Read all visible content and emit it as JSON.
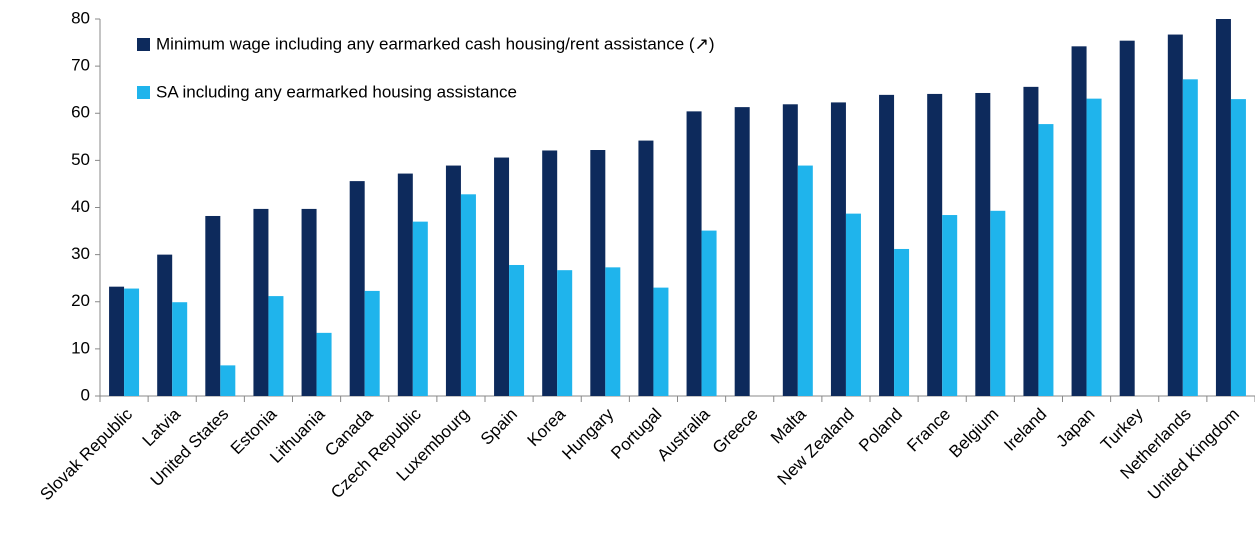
{
  "chart_data": {
    "type": "bar",
    "categories": [
      "Slovak Republic",
      "Latvia",
      "United States",
      "Estonia",
      "Lithuania",
      "Canada",
      "Czech Republic",
      "Luxembourg",
      "Spain",
      "Korea",
      "Hungary",
      "Portugal",
      "Australia",
      "Greece",
      "Malta",
      "New Zealand",
      "Poland",
      "France",
      "Belgium",
      "Ireland",
      "Japan",
      "Turkey",
      "Netherlands",
      "United Kingdom"
    ],
    "series": [
      {
        "name": "Minimum wage including any earmarked cash housing/rent assistance (↗)",
        "color": "#0d2a5c",
        "values": [
          23.2,
          30.0,
          38.2,
          39.7,
          39.7,
          45.6,
          47.2,
          48.9,
          50.6,
          52.1,
          52.2,
          54.2,
          60.4,
          61.3,
          61.9,
          62.3,
          63.9,
          64.1,
          64.3,
          65.6,
          74.2,
          75.4,
          76.7,
          80.3
        ]
      },
      {
        "name": "SA including any earmarked housing assistance",
        "color": "#1fb4ec",
        "values": [
          22.8,
          19.9,
          6.5,
          21.2,
          13.4,
          22.3,
          37.0,
          42.8,
          27.8,
          26.7,
          27.3,
          23.0,
          35.1,
          null,
          48.9,
          38.7,
          31.2,
          38.4,
          39.3,
          57.7,
          63.1,
          null,
          67.2,
          63.0
        ]
      }
    ],
    "ylim": [
      0,
      80
    ],
    "yticks": [
      0,
      10,
      20,
      30,
      40,
      50,
      60,
      70,
      80
    ],
    "grid": false
  }
}
